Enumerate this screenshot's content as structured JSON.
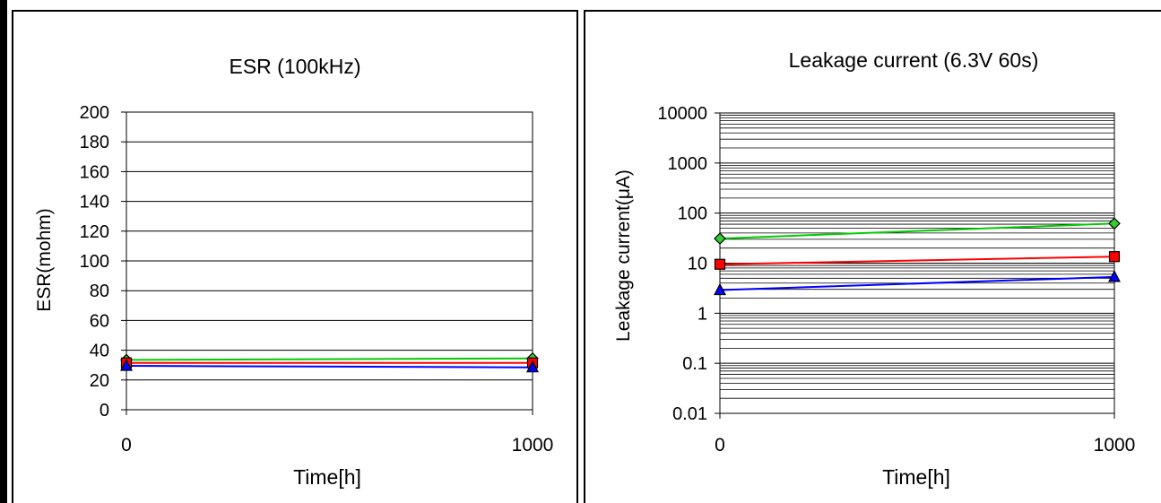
{
  "chart_data": [
    {
      "type": "line",
      "title": "ESR (100kHz)",
      "xlabel": "Time[h]",
      "ylabel": "ESR(mohm)",
      "x_ticks": [
        "0",
        "1000"
      ],
      "x": [
        0,
        1000
      ],
      "xlim": [
        0,
        1000
      ],
      "ylim": [
        0,
        200
      ],
      "y_ticks": [
        0,
        20,
        40,
        60,
        80,
        100,
        120,
        140,
        160,
        180,
        200
      ],
      "y_scale": "linear",
      "grid": true,
      "series": [
        {
          "color": "#00cc00",
          "marker": "diamond",
          "marker_fill": "#33cc33",
          "values": [
            33.5,
            34.5
          ]
        },
        {
          "color": "#ff0000",
          "marker": "square",
          "marker_fill": "#ff0000",
          "values": [
            31.5,
            31.5
          ]
        },
        {
          "color": "#0000ff",
          "marker": "triangle",
          "marker_fill": "#0000ff",
          "values": [
            29.5,
            28.5
          ]
        }
      ]
    },
    {
      "type": "line",
      "title": "Leakage current (6.3V 60s)",
      "xlabel": "Time[h]",
      "ylabel": "Leakage current(μA)",
      "x_ticks": [
        "0",
        "1000"
      ],
      "x": [
        0,
        1000
      ],
      "xlim": [
        0,
        1000
      ],
      "ylim": [
        0.01,
        10000
      ],
      "y_ticks": [
        "0.01",
        "0.1",
        "1",
        "10",
        "100",
        "1000",
        "10000"
      ],
      "y_tick_values": [
        0.01,
        0.1,
        1,
        10,
        100,
        1000,
        10000
      ],
      "y_scale": "log",
      "grid": true,
      "series": [
        {
          "color": "#00cc00",
          "marker": "diamond",
          "marker_fill": "#33cc33",
          "values": [
            31,
            62
          ]
        },
        {
          "color": "#ff0000",
          "marker": "square",
          "marker_fill": "#ff0000",
          "values": [
            9.5,
            13.5
          ]
        },
        {
          "color": "#0000ff",
          "marker": "triangle",
          "marker_fill": "#0000ff",
          "values": [
            2.9,
            5.3
          ]
        }
      ]
    }
  ]
}
